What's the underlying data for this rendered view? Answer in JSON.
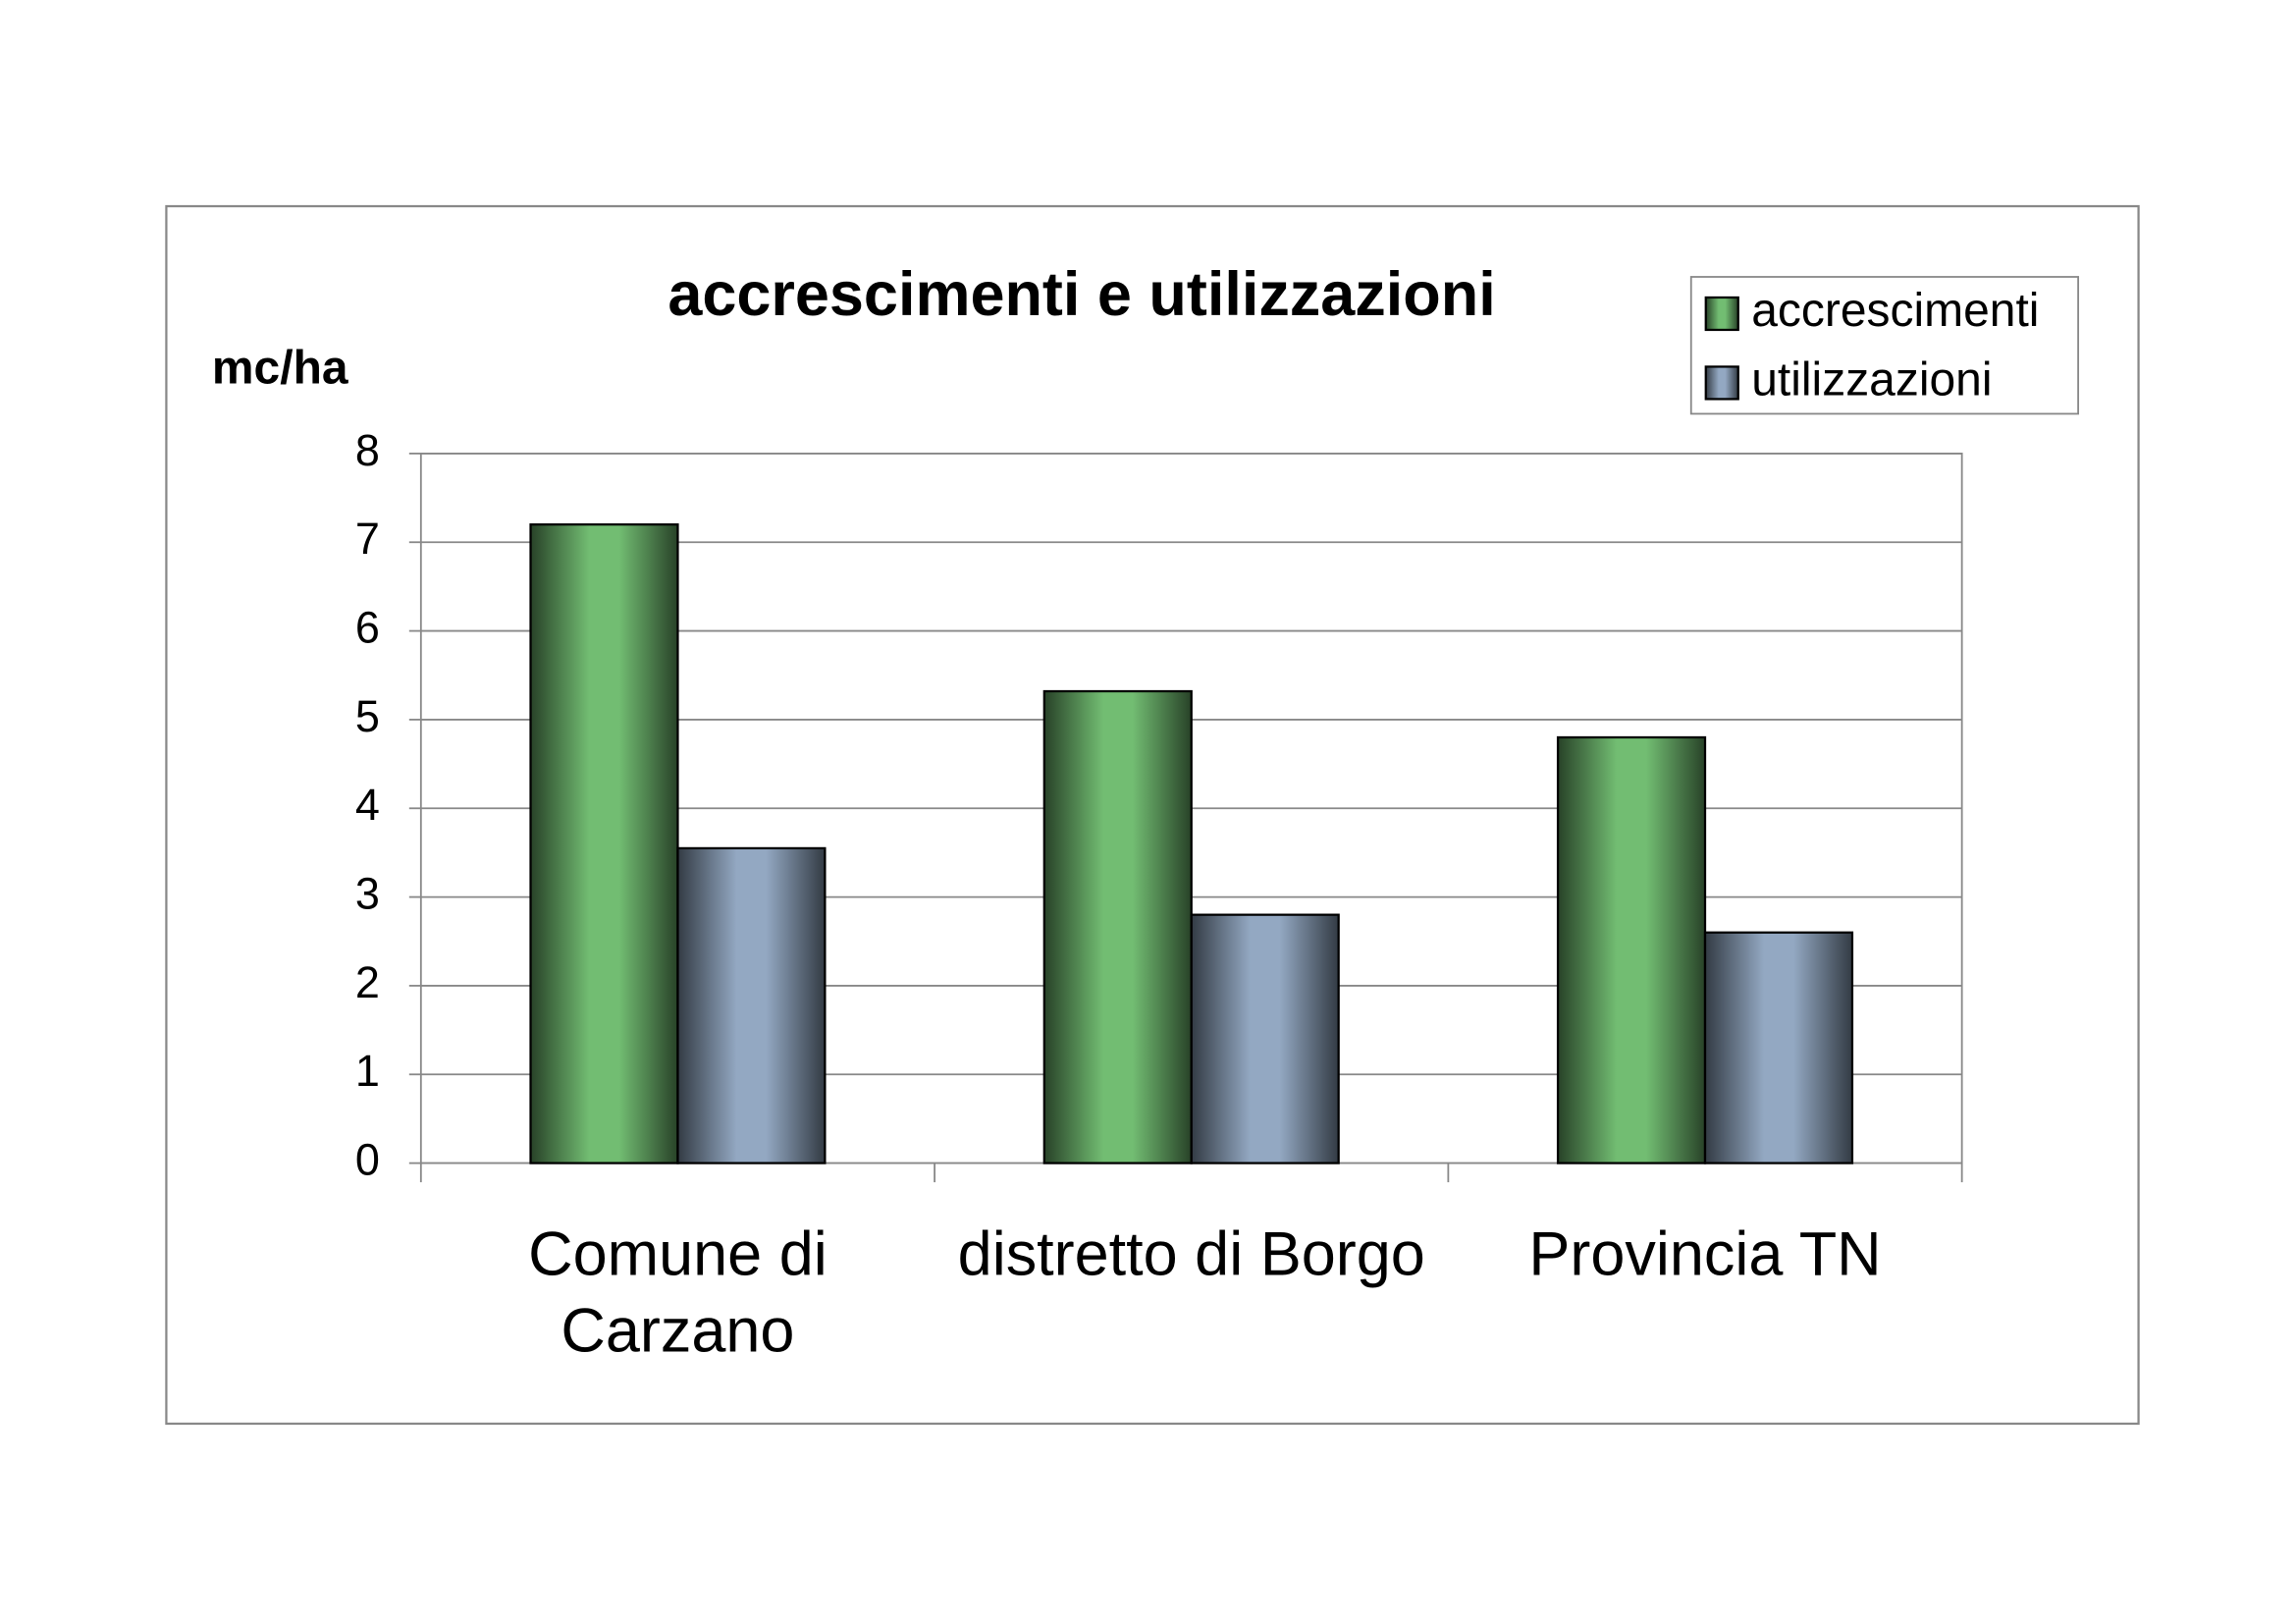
{
  "chart_data": {
    "type": "bar",
    "title": "accrescimenti e utilizzazioni",
    "y_label": "mc/ha",
    "categories": [
      "Comune di Carzano",
      "distretto di Borgo",
      "Provincia TN"
    ],
    "series": [
      {
        "name": "accrescimenti",
        "color": "#72bd72",
        "values": [
          7.2,
          5.32,
          4.8
        ]
      },
      {
        "name": "utilizzazioni",
        "color": "#93a8c2",
        "values": [
          3.55,
          2.8,
          2.6
        ]
      }
    ],
    "ylim": [
      0,
      8
    ],
    "yticks": [
      0,
      1,
      2,
      3,
      4,
      5,
      6,
      7,
      8
    ],
    "grid": true,
    "legend": "top-right"
  }
}
